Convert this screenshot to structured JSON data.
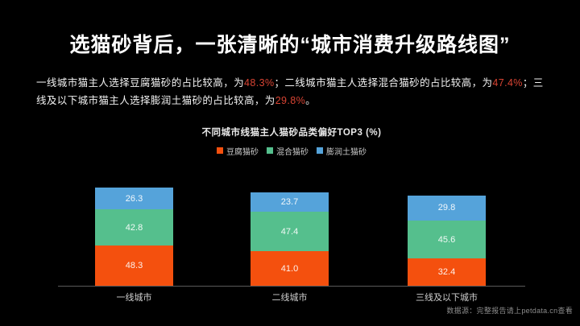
{
  "slide": {
    "title": "选猫砂背后，一张清晰的“城市消费升级路线图”",
    "description_segments": [
      {
        "text": "一线城市猫主人选择豆腐猫砂的占比较高，为",
        "highlight": false
      },
      {
        "text": "48.3%",
        "highlight": true
      },
      {
        "text": "；二线城市猫主人选择混合猫砂的占比较高，为",
        "highlight": false
      },
      {
        "text": "47.4%",
        "highlight": true
      },
      {
        "text": "；三线及以下城市猫主人选择膨润土猫砂的占比较高，为",
        "highlight": false
      },
      {
        "text": "29.8%",
        "highlight": true
      },
      {
        "text": "。",
        "highlight": false
      }
    ],
    "footer_note": "数据源：完整报告请上petdata.cn查看"
  },
  "colors": {
    "background": "#000000",
    "highlight_red": "#d84433",
    "axis_line": "#5a5a5a"
  },
  "chart_data": {
    "type": "bar",
    "stacked": true,
    "title": "不同城市线猫主人猫砂品类偏好TOP3 (%)",
    "value_unit": "%",
    "grid": false,
    "legend_position": "top",
    "categories": [
      "一线城市",
      "二线城市",
      "三线及以下城市"
    ],
    "series": [
      {
        "name": "豆腐猫砂",
        "color": "#f4500e",
        "values": [
          48.3,
          41.0,
          32.4
        ],
        "labels": [
          "48.3",
          "41.0",
          "32.4"
        ]
      },
      {
        "name": "混合猫砂",
        "color": "#55bf8d",
        "values": [
          42.8,
          47.4,
          45.6
        ],
        "labels": [
          "42.8",
          "47.4",
          "45.6"
        ]
      },
      {
        "name": "膨润土猫砂",
        "color": "#55a3da",
        "values": [
          26.3,
          23.7,
          29.8
        ],
        "labels": [
          "26.3",
          "23.7",
          "29.8"
        ]
      }
    ]
  }
}
